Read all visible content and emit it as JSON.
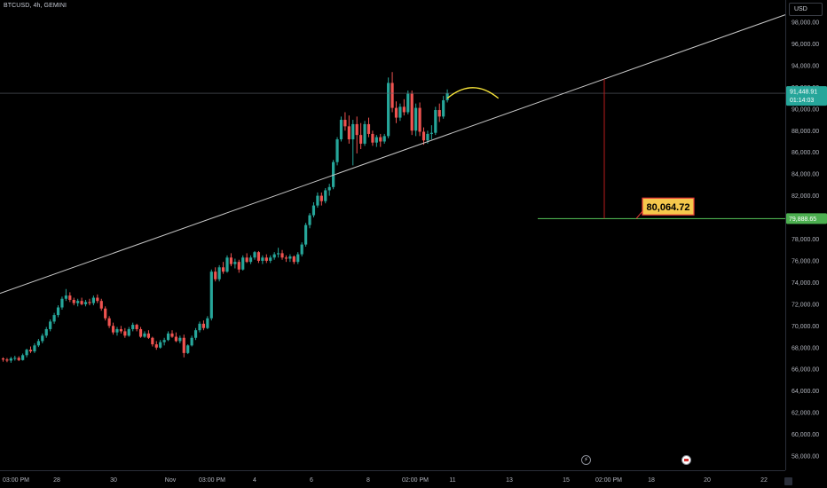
{
  "header": {
    "symbol": "BTCUSD, 4h, GEMINI"
  },
  "price_axis": {
    "currency": "USD",
    "ticks": [
      "98,000.00",
      "96,000.00",
      "94,000.00",
      "92,000.00",
      "90,000.00",
      "88,000.00",
      "86,000.00",
      "84,000.00",
      "82,000.00",
      "80,000.00",
      "78,000.00",
      "76,000.00",
      "74,000.00",
      "72,000.00",
      "70,000.00",
      "68,000.00",
      "66,000.00",
      "64,000.00",
      "62,000.00",
      "60,000.00",
      "58,000.00"
    ]
  },
  "time_axis": {
    "ticks": [
      "03:00 PM",
      "28",
      "30",
      "Nov",
      "03:00 PM",
      "4",
      "6",
      "8",
      "02:00 PM",
      "11",
      "13",
      "15",
      "02:00 PM",
      "18",
      "20",
      "22"
    ]
  },
  "current_price": {
    "price_label": "91,448.91",
    "countdown": "01:14:03",
    "value": 91448.91
  },
  "target_line": {
    "label": "79,888.65",
    "value": 79888.65
  },
  "callout": {
    "label": "80,064.72",
    "value": 80064.72
  },
  "colors": {
    "up": "#26a69a",
    "down": "#ef5350",
    "background": "#000000",
    "trendline": "#c8c8c8",
    "target": "#4caf50",
    "arc": "#ffeb3b",
    "callout_bg": "#f5c84c"
  },
  "chart_data": {
    "type": "candlestick",
    "symbol": "BTCUSD",
    "interval": "4h",
    "exchange": "GEMINI",
    "ylim": [
      57500,
      99500
    ],
    "grid": false,
    "candles": [
      [
        67000,
        67100,
        66700,
        66900
      ],
      [
        66900,
        67050,
        66650,
        66800
      ],
      [
        66800,
        67150,
        66600,
        67000
      ],
      [
        67000,
        67250,
        66800,
        67050
      ],
      [
        67050,
        67200,
        66750,
        66850
      ],
      [
        66850,
        67450,
        66800,
        67300
      ],
      [
        67300,
        67900,
        67100,
        67800
      ],
      [
        67800,
        68100,
        67500,
        67650
      ],
      [
        67650,
        68400,
        67500,
        68200
      ],
      [
        68200,
        68800,
        68050,
        68600
      ],
      [
        68600,
        69300,
        68400,
        69100
      ],
      [
        69100,
        69900,
        68900,
        69700
      ],
      [
        69700,
        70600,
        69500,
        70400
      ],
      [
        70400,
        71200,
        70200,
        71000
      ],
      [
        71000,
        71900,
        70800,
        71700
      ],
      [
        71700,
        72700,
        71500,
        72500
      ],
      [
        72500,
        73400,
        72300,
        72800
      ],
      [
        72800,
        73100,
        72200,
        72400
      ],
      [
        72400,
        72600,
        71900,
        72100
      ],
      [
        72100,
        72500,
        71800,
        72300
      ],
      [
        72300,
        72600,
        71900,
        72000
      ],
      [
        72000,
        72400,
        71800,
        72200
      ],
      [
        72200,
        72500,
        71900,
        72100
      ],
      [
        72100,
        72800,
        71900,
        72600
      ],
      [
        72600,
        72900,
        72100,
        72300
      ],
      [
        72300,
        72500,
        71400,
        71600
      ],
      [
        71600,
        71800,
        70500,
        70700
      ],
      [
        70700,
        70900,
        69800,
        70000
      ],
      [
        70000,
        70300,
        69200,
        69400
      ],
      [
        69400,
        69900,
        69100,
        69700
      ],
      [
        69700,
        70000,
        69300,
        69500
      ],
      [
        69500,
        69800,
        68900,
        69100
      ],
      [
        69100,
        69900,
        69000,
        69700
      ],
      [
        69700,
        70300,
        69500,
        70100
      ],
      [
        70100,
        70200,
        69500,
        69700
      ],
      [
        69700,
        69900,
        68900,
        69000
      ],
      [
        69000,
        69500,
        68900,
        69300
      ],
      [
        69300,
        69600,
        68800,
        68900
      ],
      [
        68900,
        69000,
        68100,
        68300
      ],
      [
        68300,
        68600,
        67800,
        68000
      ],
      [
        68000,
        68700,
        67900,
        68500
      ],
      [
        68500,
        68900,
        68200,
        68700
      ],
      [
        68700,
        69500,
        68600,
        69300
      ],
      [
        69300,
        69600,
        68900,
        69000
      ],
      [
        69000,
        69400,
        68500,
        68600
      ],
      [
        68600,
        69100,
        68400,
        68900
      ],
      [
        68900,
        69200,
        67100,
        67500
      ],
      [
        67500,
        68300,
        67400,
        68200
      ],
      [
        68200,
        69100,
        68100,
        68900
      ],
      [
        68900,
        69800,
        68700,
        69600
      ],
      [
        69600,
        70400,
        69400,
        70200
      ],
      [
        70200,
        70500,
        69600,
        69800
      ],
      [
        69800,
        70900,
        69700,
        70700
      ],
      [
        70700,
        75200,
        70500,
        75000
      ],
      [
        75000,
        75400,
        74100,
        74300
      ],
      [
        74300,
        75600,
        74100,
        75400
      ],
      [
        75400,
        75900,
        74800,
        75000
      ],
      [
        75000,
        76500,
        74900,
        76300
      ],
      [
        76300,
        76700,
        75500,
        75700
      ],
      [
        75700,
        76200,
        75300,
        75900
      ],
      [
        75900,
        76100,
        74900,
        75200
      ],
      [
        75200,
        76500,
        75100,
        76300
      ],
      [
        76300,
        76700,
        75800,
        75900
      ],
      [
        75900,
        76500,
        75700,
        76300
      ],
      [
        76300,
        76900,
        76100,
        76800
      ],
      [
        76800,
        76900,
        75800,
        76000
      ],
      [
        76000,
        76500,
        75700,
        76300
      ],
      [
        76300,
        76600,
        75800,
        76000
      ],
      [
        76000,
        76500,
        75800,
        76300
      ],
      [
        76300,
        76800,
        76100,
        76600
      ],
      [
        76600,
        77200,
        76300,
        76700
      ],
      [
        76700,
        77000,
        76100,
        76300
      ],
      [
        76300,
        76500,
        75900,
        76200
      ],
      [
        76200,
        76600,
        75900,
        76400
      ],
      [
        76400,
        76500,
        75700,
        75900
      ],
      [
        75900,
        76800,
        75700,
        76600
      ],
      [
        76600,
        77700,
        76400,
        77500
      ],
      [
        77500,
        79500,
        77300,
        79300
      ],
      [
        79300,
        80400,
        79000,
        80200
      ],
      [
        80200,
        81400,
        80000,
        81100
      ],
      [
        81100,
        82300,
        80900,
        82000
      ],
      [
        82000,
        82300,
        81100,
        81500
      ],
      [
        81500,
        82700,
        81300,
        82500
      ],
      [
        82500,
        83100,
        82000,
        82800
      ],
      [
        82800,
        85300,
        82600,
        85100
      ],
      [
        85100,
        87400,
        84800,
        87200
      ],
      [
        87200,
        89300,
        87000,
        89000
      ],
      [
        89000,
        89700,
        88000,
        88400
      ],
      [
        88400,
        89400,
        86800,
        87200
      ],
      [
        87200,
        89000,
        84800,
        88600
      ],
      [
        88600,
        89300,
        85900,
        87600
      ],
      [
        87600,
        88700,
        86300,
        86800
      ],
      [
        86800,
        88900,
        86600,
        88600
      ],
      [
        88600,
        89200,
        87400,
        87700
      ],
      [
        87700,
        88000,
        86600,
        86900
      ],
      [
        86900,
        87600,
        86500,
        87400
      ],
      [
        87400,
        87700,
        86500,
        87000
      ],
      [
        87000,
        87700,
        86800,
        87500
      ],
      [
        87500,
        92900,
        87300,
        92400
      ],
      [
        92400,
        93400,
        89700,
        90100
      ],
      [
        90100,
        90700,
        88700,
        89200
      ],
      [
        89200,
        90500,
        88900,
        90200
      ],
      [
        90200,
        90900,
        89400,
        89700
      ],
      [
        89700,
        91700,
        89500,
        91400
      ],
      [
        91400,
        91700,
        87600,
        88000
      ],
      [
        88000,
        90500,
        87500,
        90100
      ],
      [
        90100,
        90600,
        87500,
        87900
      ],
      [
        87900,
        88300,
        86700,
        87100
      ],
      [
        87100,
        88000,
        86800,
        87700
      ],
      [
        87700,
        88500,
        87200,
        87800
      ],
      [
        87800,
        90200,
        87600,
        89900
      ],
      [
        89900,
        90500,
        88800,
        89300
      ],
      [
        89300,
        91200,
        89100,
        90800
      ],
      [
        90800,
        91800,
        90600,
        91449
      ]
    ],
    "annotations": {
      "trendline": [
        {
          "index": 0,
          "price": 73100
        },
        {
          "index": 147,
          "price": 92000
        }
      ],
      "neckline_target": 79888.65,
      "projection_callout": 80064.72,
      "head_and_shoulders_arcs": [
        "left-shoulder",
        "head",
        "right-shoulder"
      ]
    }
  }
}
